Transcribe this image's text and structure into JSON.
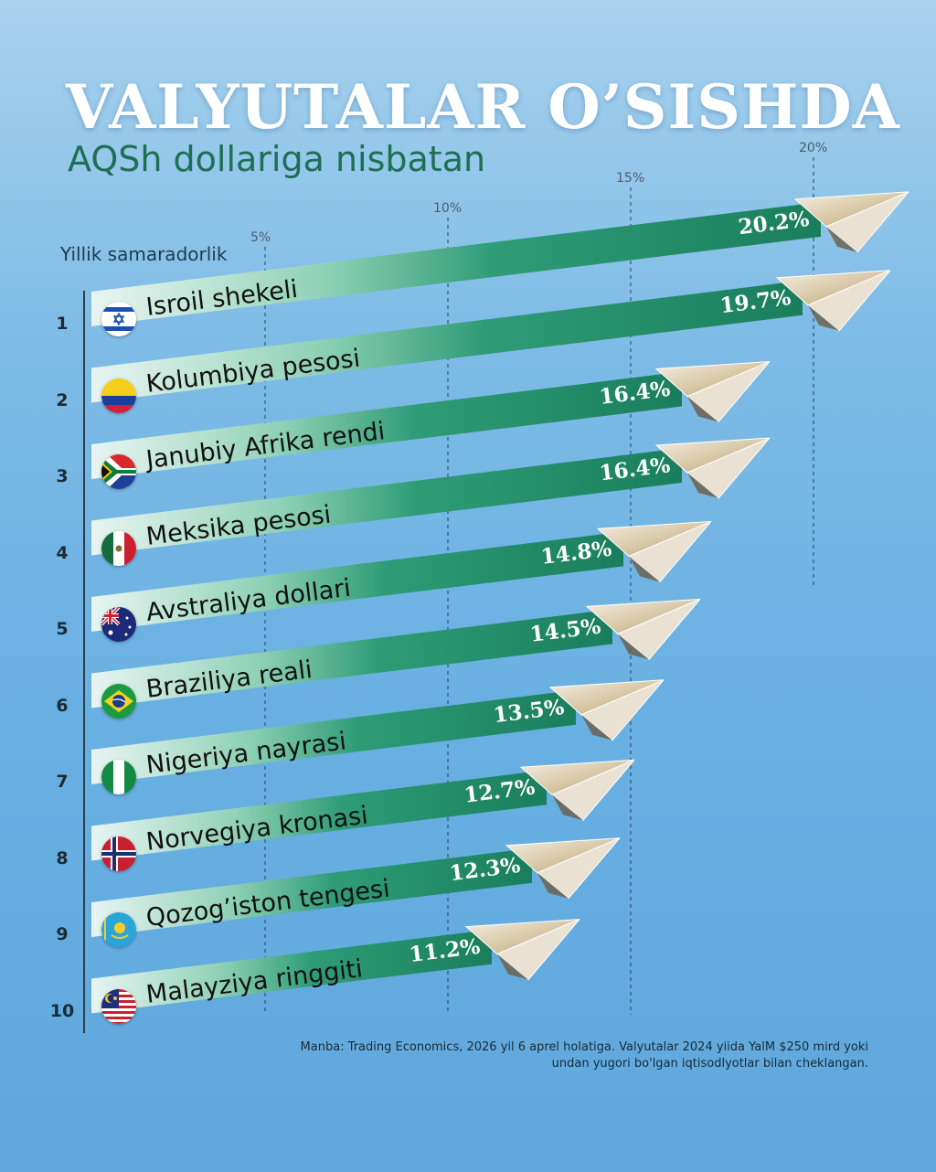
{
  "title": "VALYUTALAR O’SISHDA",
  "subtitle": "AQSh dollariga nisbatan",
  "chart_data": {
    "type": "bar",
    "orientation": "horizontal",
    "ylabel": "Yillik samaradorlik",
    "x_ticks": [
      "5%",
      "10%",
      "15%",
      "20%"
    ],
    "x_tick_values": [
      5,
      10,
      15,
      20
    ],
    "categories": [
      "Isroil shekeli",
      "Kolumbiya pesosi",
      "Janubiy Afrika rendi",
      "Meksika pesosi",
      "Avstraliya dollari",
      "Braziliya reali",
      "Nigeriya nayrasi",
      "Norvegiya kronasi",
      "Qozog’iston tengesi",
      "Malayziya ringgiti"
    ],
    "ranks": [
      "1",
      "2",
      "3",
      "4",
      "5",
      "6",
      "7",
      "8",
      "9",
      "10"
    ],
    "values": [
      20.2,
      19.7,
      16.4,
      16.4,
      14.8,
      14.5,
      13.5,
      12.7,
      12.3,
      11.2
    ],
    "value_labels": [
      "20.2%",
      "19.7%",
      "16.4%",
      "16.4%",
      "14.8%",
      "14.5%",
      "13.5%",
      "12.7%",
      "12.3%",
      "11.2%"
    ],
    "flags": [
      "israel",
      "colombia",
      "south-africa",
      "mexico",
      "australia",
      "brazil",
      "nigeria",
      "norway",
      "kazakhstan",
      "malaysia"
    ],
    "colors": {
      "bar_dark": "#1f8c6a",
      "bar_light": "#e8f6f0",
      "label": "#ffffff"
    }
  },
  "footnote": {
    "line1": "Manba: Trading Economics, 2026 yil 6 aprel holatiga. Valyutalar 2024 yiida YalM $250 mird yoki",
    "line2": "undan yugori bo'lgan iqtisodlyotlar bilan cheklangan."
  }
}
